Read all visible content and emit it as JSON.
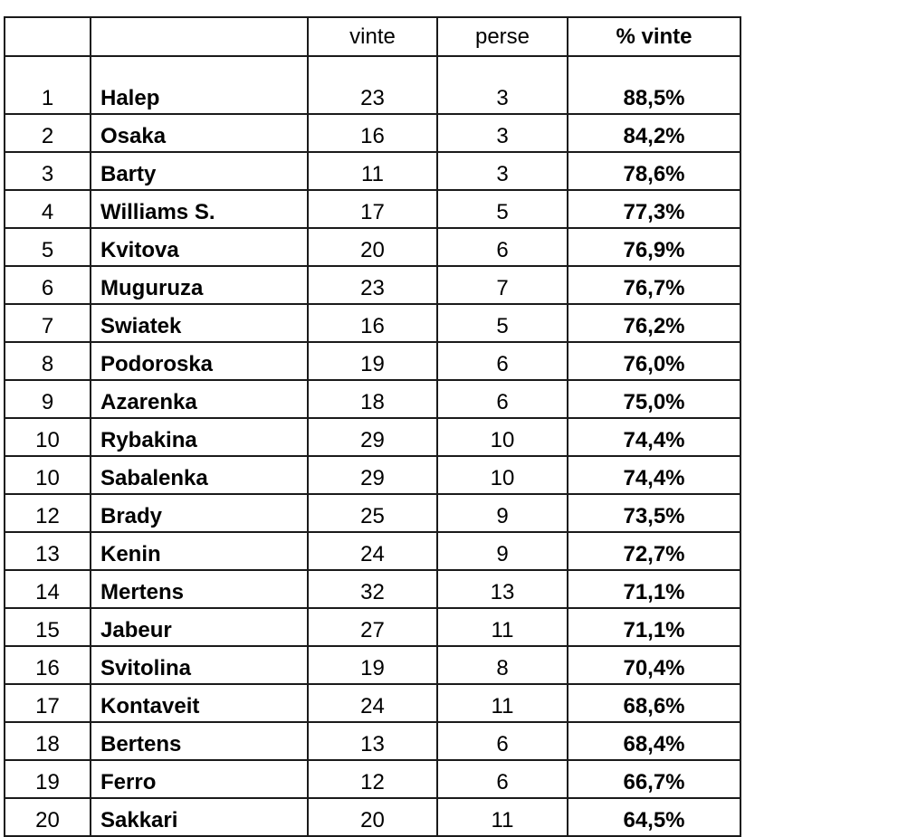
{
  "headers": [
    "",
    "",
    "vinte",
    "perse",
    "% vinte"
  ],
  "rows": [
    {
      "rank": "1",
      "name": "Halep",
      "won": "23",
      "lost": "3",
      "pct": "88,5%"
    },
    {
      "rank": "2",
      "name": "Osaka",
      "won": "16",
      "lost": "3",
      "pct": "84,2%"
    },
    {
      "rank": "3",
      "name": "Barty",
      "won": "11",
      "lost": "3",
      "pct": "78,6%"
    },
    {
      "rank": "4",
      "name": "Williams S.",
      "won": "17",
      "lost": "5",
      "pct": "77,3%"
    },
    {
      "rank": "5",
      "name": "Kvitova",
      "won": "20",
      "lost": "6",
      "pct": "76,9%"
    },
    {
      "rank": "6",
      "name": "Muguruza",
      "won": "23",
      "lost": "7",
      "pct": "76,7%"
    },
    {
      "rank": "7",
      "name": "Swiatek",
      "won": "16",
      "lost": "5",
      "pct": "76,2%"
    },
    {
      "rank": "8",
      "name": "Podoroska",
      "won": "19",
      "lost": "6",
      "pct": "76,0%"
    },
    {
      "rank": "9",
      "name": "Azarenka",
      "won": "18",
      "lost": "6",
      "pct": "75,0%"
    },
    {
      "rank": "10",
      "name": "Rybakina",
      "won": "29",
      "lost": "10",
      "pct": "74,4%"
    },
    {
      "rank": "10",
      "name": "Sabalenka",
      "won": "29",
      "lost": "10",
      "pct": "74,4%"
    },
    {
      "rank": "12",
      "name": "Brady",
      "won": "25",
      "lost": "9",
      "pct": "73,5%"
    },
    {
      "rank": "13",
      "name": "Kenin",
      "won": "24",
      "lost": "9",
      "pct": "72,7%"
    },
    {
      "rank": "14",
      "name": "Mertens",
      "won": "32",
      "lost": "13",
      "pct": "71,1%"
    },
    {
      "rank": "15",
      "name": "Jabeur",
      "won": "27",
      "lost": "11",
      "pct": "71,1%"
    },
    {
      "rank": "16",
      "name": "Svitolina",
      "won": "19",
      "lost": "8",
      "pct": "70,4%"
    },
    {
      "rank": "17",
      "name": "Kontaveit",
      "won": "24",
      "lost": "11",
      "pct": "68,6%"
    },
    {
      "rank": "18",
      "name": "Bertens",
      "won": "13",
      "lost": "6",
      "pct": "68,4%"
    },
    {
      "rank": "19",
      "name": "Ferro",
      "won": "12",
      "lost": "6",
      "pct": "66,7%"
    },
    {
      "rank": "20",
      "name": "Sakkari",
      "won": "20",
      "lost": "11",
      "pct": "64,5%"
    }
  ]
}
